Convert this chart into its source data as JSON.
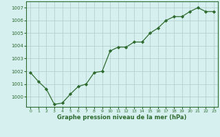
{
  "x": [
    0,
    1,
    2,
    3,
    4,
    5,
    6,
    7,
    8,
    9,
    10,
    11,
    12,
    13,
    14,
    15,
    16,
    17,
    18,
    19,
    20,
    21,
    22,
    23
  ],
  "y": [
    1001.9,
    1001.2,
    1000.6,
    999.4,
    999.5,
    1000.2,
    1000.8,
    1001.0,
    1001.9,
    1002.0,
    1003.6,
    1003.9,
    1003.9,
    1004.3,
    1004.3,
    1005.0,
    1005.4,
    1006.0,
    1006.3,
    1006.3,
    1006.7,
    1007.0,
    1006.7,
    1006.7
  ],
  "line_color": "#2d6a2d",
  "marker": "D",
  "marker_size": 2.2,
  "bg_color": "#d6f0f0",
  "grid_color": "#b0c8c8",
  "xlabel": "Graphe pression niveau de la mer (hPa)",
  "xlabel_color": "#2d6a2d",
  "ylabel_ticks": [
    1000,
    1001,
    1002,
    1003,
    1004,
    1005,
    1006,
    1007
  ],
  "ylim": [
    999.2,
    1007.5
  ],
  "xlim": [
    -0.5,
    23.5
  ],
  "tick_color": "#2d6a2d",
  "axis_color": "#2d6a2d",
  "linewidth": 0.9
}
